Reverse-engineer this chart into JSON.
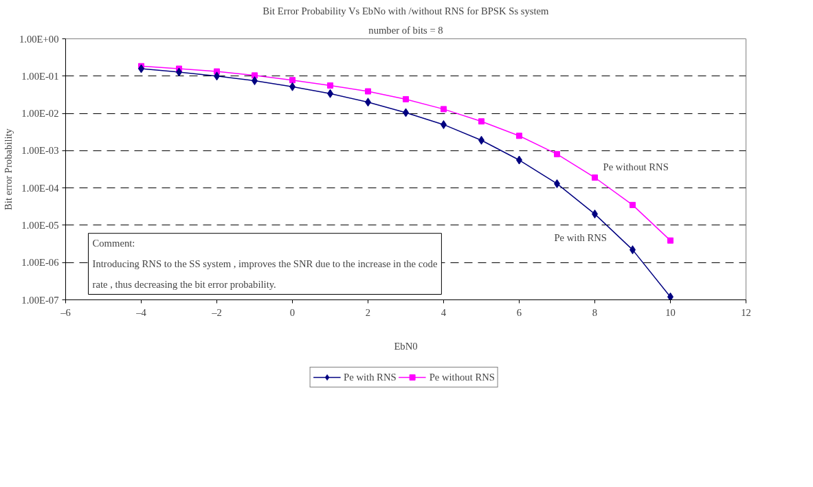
{
  "chart_data": {
    "type": "line",
    "title": "Bit Error Probability Vs EbNo with /without RNS for BPSK Ss system",
    "subtitle": "number of bits = 8",
    "xlabel": "EbN0",
    "ylabel": "Bit error Probability",
    "x": [
      -4,
      -3,
      -2,
      -1,
      0,
      1,
      2,
      3,
      4,
      5,
      6,
      7,
      8,
      9,
      10
    ],
    "series": [
      {
        "name": "Pe with RNS",
        "color": "#000080",
        "marker": "diamond",
        "values": [
          0.158,
          0.128,
          0.1,
          0.075,
          0.052,
          0.034,
          0.02,
          0.0105,
          0.005,
          0.0019,
          0.00056,
          0.00013,
          2e-05,
          2.2e-06,
          1.2e-07
        ]
      },
      {
        "name": "Pe without RNS",
        "color": "#ff00ff",
        "marker": "square",
        "values": [
          0.185,
          0.158,
          0.133,
          0.104,
          0.078,
          0.056,
          0.039,
          0.024,
          0.013,
          0.0061,
          0.0025,
          0.00081,
          0.00019,
          3.5e-05,
          3.9e-06
        ]
      }
    ],
    "xlim": [
      -6,
      12
    ],
    "xticks": [
      {
        "value": -6,
        "label": "–6"
      },
      {
        "value": -4,
        "label": "–4"
      },
      {
        "value": -2,
        "label": "–2"
      },
      0,
      2,
      4,
      6,
      8,
      10,
      12
    ],
    "ylim": [
      1e-07,
      1
    ],
    "yticks": [
      {
        "value": 1e-07,
        "label": "1.00E-07"
      },
      {
        "value": 1e-06,
        "label": "1.00E-06"
      },
      {
        "value": 1e-05,
        "label": "1.00E-05"
      },
      {
        "value": 0.0001,
        "label": "1.00E-04"
      },
      {
        "value": 0.001,
        "label": "1.00E-03"
      },
      {
        "value": 0.01,
        "label": "1.00E-02"
      },
      {
        "value": 0.1,
        "label": "1.00E-01"
      },
      {
        "value": 1,
        "label": "1.00E+00"
      }
    ],
    "log": "y",
    "grid": "y",
    "legend": "bottom",
    "line_style": "solid",
    "annotations": [
      {
        "text": "Pe without RNS",
        "x": 8,
        "y": 0.00019
      },
      {
        "text": "Pe with RNS",
        "x": 8.5,
        "y": 6.6e-06
      },
      "Comment:\nIntroducing RNS to the SS system , improves the SNR due to the increase in the code\nrate , thus decreasing the bit error probability."
    ]
  }
}
